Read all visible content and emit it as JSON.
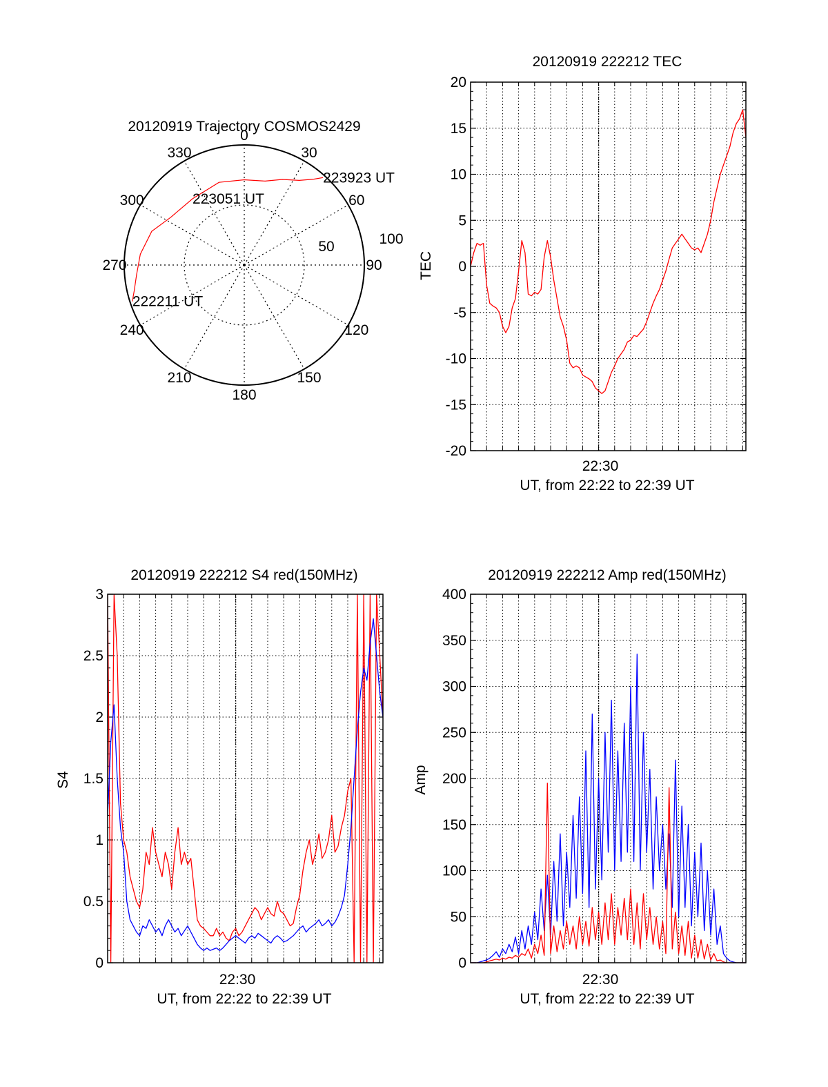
{
  "colors": {
    "red": "#ff0000",
    "blue": "#0000ff",
    "axis": "#000000",
    "grid": "#000000"
  },
  "chart_data": [
    {
      "id": "trajectory",
      "type": "polar",
      "title": "20120919 Trajectory COSMOS2429",
      "azimuth_labels": [
        "0",
        "30",
        "60",
        "90",
        "120",
        "150",
        "180",
        "210",
        "240",
        "270",
        "300",
        "330"
      ],
      "ring_labels": [
        "50",
        "100"
      ],
      "rings": [
        50,
        100
      ],
      "grid": true,
      "series": [
        {
          "color": "#ff0000",
          "points": [
            {
              "az": 252,
              "r": 98
            },
            {
              "az": 257,
              "r": 94
            },
            {
              "az": 265,
              "r": 90
            },
            {
              "az": 276,
              "r": 87
            },
            {
              "az": 290,
              "r": 82
            },
            {
              "az": 303,
              "r": 73
            },
            {
              "az": 322,
              "r": 70
            },
            {
              "az": 343,
              "r": 72
            },
            {
              "az": 0,
              "r": 71
            },
            {
              "az": 14,
              "r": 72
            },
            {
              "az": 24,
              "r": 78
            },
            {
              "az": 33,
              "r": 84
            },
            {
              "az": 39,
              "r": 92
            },
            {
              "az": 42,
              "r": 98
            }
          ]
        }
      ],
      "annotations": [
        {
          "text": "222211 UT",
          "az": 252,
          "r": 98
        },
        {
          "text": "223051 UT",
          "az": 322,
          "r": 70
        },
        {
          "text": "223923 UT",
          "az": 42,
          "r": 98
        }
      ]
    },
    {
      "id": "tec",
      "type": "line",
      "title": "20120919 222212 TEC",
      "ylabel": "TEC",
      "xlabel": "UT, from 22:22 to 22:39 UT",
      "x_tick_label": "22:30",
      "xlim": [
        0,
        17.2
      ],
      "ylim": [
        -20,
        20
      ],
      "yticks": [
        "-20",
        "-15",
        "-10",
        "-5",
        "0",
        "5",
        "10",
        "15",
        "20"
      ],
      "grid": true,
      "series": [
        {
          "color": "#ff0000",
          "x": [
            0.0,
            0.2,
            0.4,
            0.6,
            0.8,
            1.0,
            1.2,
            1.4,
            1.6,
            1.8,
            2.0,
            2.2,
            2.4,
            2.6,
            2.8,
            3.0,
            3.2,
            3.4,
            3.6,
            3.8,
            4.0,
            4.2,
            4.4,
            4.6,
            4.8,
            5.0,
            5.2,
            5.4,
            5.6,
            5.8,
            6.0,
            6.2,
            6.4,
            6.6,
            6.8,
            7.0,
            7.2,
            7.4,
            7.6,
            7.8,
            8.0,
            8.2,
            8.4,
            8.6,
            8.8,
            9.0,
            9.2,
            9.4,
            9.6,
            9.8,
            10.0,
            10.2,
            10.4,
            10.6,
            10.8,
            11.0,
            11.2,
            11.4,
            11.6,
            11.8,
            12.0,
            12.2,
            12.4,
            12.6,
            12.8,
            13.0,
            13.2,
            13.4,
            13.6,
            13.8,
            14.0,
            14.2,
            14.4,
            14.6,
            14.8,
            15.0,
            15.2,
            15.4,
            15.6,
            15.8,
            16.0,
            16.2,
            16.4,
            16.6,
            16.8,
            17.0,
            17.2
          ],
          "y": [
            0.0,
            1.5,
            2.5,
            2.3,
            2.5,
            -2.0,
            -4.0,
            -4.3,
            -4.5,
            -5.0,
            -6.5,
            -7.2,
            -6.5,
            -4.5,
            -3.5,
            -0.5,
            2.8,
            1.5,
            -3.0,
            -3.2,
            -2.8,
            -3.0,
            -2.5,
            1.0,
            2.8,
            1.0,
            -1.5,
            -3.5,
            -5.5,
            -6.5,
            -8.0,
            -10.5,
            -11.0,
            -10.8,
            -11.0,
            -11.8,
            -12.0,
            -12.2,
            -12.5,
            -13.2,
            -13.5,
            -13.8,
            -13.5,
            -12.5,
            -11.5,
            -10.8,
            -10.0,
            -9.5,
            -9.0,
            -8.2,
            -8.0,
            -7.5,
            -7.6,
            -7.2,
            -6.8,
            -6.0,
            -5.0,
            -4.0,
            -3.2,
            -2.5,
            -1.5,
            -0.5,
            0.8,
            2.0,
            2.5,
            3.0,
            3.5,
            3.0,
            2.5,
            2.0,
            1.8,
            2.0,
            1.5,
            2.5,
            3.5,
            5.0,
            7.0,
            8.5,
            10.0,
            11.0,
            12.0,
            13.0,
            14.5,
            15.5,
            16.0,
            17.0,
            14.0
          ]
        }
      ]
    },
    {
      "id": "s4",
      "type": "line",
      "title": "20120919 222212 S4 red(150MHz)",
      "ylabel": "S4",
      "xlabel": "UT, from 22:22 to 22:39 UT",
      "x_tick_label": "22:30",
      "xlim": [
        0,
        17.2
      ],
      "ylim": [
        0,
        3
      ],
      "yticks": [
        "0",
        "0.5",
        "1",
        "1.5",
        "2",
        "2.5",
        "3"
      ],
      "grid": true,
      "series": [
        {
          "color": "#ff0000",
          "x": [
            0.0,
            0.2,
            0.4,
            0.6,
            0.8,
            1.0,
            1.2,
            1.4,
            1.6,
            1.8,
            2.0,
            2.2,
            2.4,
            2.6,
            2.8,
            3.0,
            3.2,
            3.4,
            3.6,
            3.8,
            4.0,
            4.2,
            4.4,
            4.6,
            4.8,
            5.0,
            5.2,
            5.4,
            5.6,
            5.8,
            6.0,
            6.2,
            6.4,
            6.6,
            6.8,
            7.0,
            7.2,
            7.4,
            7.6,
            7.8,
            8.0,
            8.2,
            8.4,
            8.6,
            8.8,
            9.0,
            9.2,
            9.4,
            9.6,
            9.8,
            10.0,
            10.2,
            10.4,
            10.6,
            10.8,
            11.0,
            11.2,
            11.4,
            11.6,
            11.8,
            12.0,
            12.2,
            12.4,
            12.6,
            12.8,
            13.0,
            13.2,
            13.4,
            13.6,
            13.8,
            14.0,
            14.2,
            14.4,
            14.6,
            14.8,
            15.0,
            15.2,
            15.4,
            15.6,
            15.8,
            16.0,
            16.2,
            16.4,
            16.6,
            16.8,
            17.0,
            17.2
          ],
          "y": [
            3.0,
            0.0,
            3.0,
            2.5,
            1.3,
            1.0,
            0.9,
            0.7,
            0.6,
            0.5,
            0.45,
            0.6,
            0.9,
            0.8,
            1.1,
            0.9,
            0.8,
            0.7,
            0.9,
            0.8,
            0.6,
            0.9,
            1.1,
            0.8,
            0.9,
            0.8,
            0.85,
            0.6,
            0.35,
            0.3,
            0.28,
            0.25,
            0.22,
            0.22,
            0.28,
            0.22,
            0.25,
            0.2,
            0.18,
            0.25,
            0.28,
            0.22,
            0.25,
            0.3,
            0.35,
            0.4,
            0.45,
            0.42,
            0.35,
            0.4,
            0.45,
            0.4,
            0.38,
            0.5,
            0.42,
            0.4,
            0.35,
            0.3,
            0.32,
            0.45,
            0.55,
            0.75,
            0.9,
            1.0,
            0.8,
            0.9,
            1.05,
            0.85,
            0.9,
            1.0,
            1.2,
            0.9,
            0.95,
            1.1,
            1.2,
            1.4,
            1.5,
            0.0,
            3.0,
            0.0,
            3.0,
            0.0,
            3.0,
            0.0,
            3.0,
            2.5,
            2.0
          ]
        },
        {
          "color": "#0000ff",
          "x": [
            0.0,
            0.2,
            0.4,
            0.6,
            0.8,
            1.0,
            1.2,
            1.4,
            1.6,
            1.8,
            2.0,
            2.2,
            2.4,
            2.6,
            2.8,
            3.0,
            3.2,
            3.4,
            3.6,
            3.8,
            4.0,
            4.2,
            4.4,
            4.6,
            4.8,
            5.0,
            5.2,
            5.4,
            5.6,
            5.8,
            6.0,
            6.2,
            6.4,
            6.6,
            6.8,
            7.0,
            7.2,
            7.4,
            7.6,
            7.8,
            8.0,
            8.2,
            8.4,
            8.6,
            8.8,
            9.0,
            9.2,
            9.4,
            9.6,
            9.8,
            10.0,
            10.2,
            10.4,
            10.6,
            10.8,
            11.0,
            11.2,
            11.4,
            11.6,
            11.8,
            12.0,
            12.2,
            12.4,
            12.6,
            12.8,
            13.0,
            13.2,
            13.4,
            13.6,
            13.8,
            14.0,
            14.2,
            14.4,
            14.6,
            14.8,
            15.0,
            15.2,
            15.4,
            15.6,
            15.8,
            16.0,
            16.2,
            16.4,
            16.6,
            16.8,
            17.0,
            17.2
          ],
          "y": [
            1.2,
            1.8,
            2.1,
            1.5,
            1.1,
            0.9,
            0.5,
            0.35,
            0.3,
            0.25,
            0.22,
            0.3,
            0.28,
            0.35,
            0.3,
            0.25,
            0.28,
            0.22,
            0.3,
            0.35,
            0.3,
            0.25,
            0.28,
            0.22,
            0.26,
            0.3,
            0.25,
            0.2,
            0.15,
            0.12,
            0.1,
            0.12,
            0.1,
            0.11,
            0.12,
            0.1,
            0.12,
            0.15,
            0.18,
            0.2,
            0.22,
            0.2,
            0.18,
            0.16,
            0.2,
            0.22,
            0.2,
            0.24,
            0.22,
            0.2,
            0.18,
            0.16,
            0.2,
            0.22,
            0.2,
            0.17,
            0.18,
            0.2,
            0.22,
            0.25,
            0.28,
            0.3,
            0.25,
            0.28,
            0.3,
            0.32,
            0.35,
            0.3,
            0.32,
            0.35,
            0.3,
            0.33,
            0.38,
            0.45,
            0.55,
            0.8,
            1.1,
            1.5,
            1.9,
            2.2,
            2.4,
            2.3,
            2.6,
            2.8,
            2.5,
            2.2,
            2.0
          ]
        }
      ]
    },
    {
      "id": "amp",
      "type": "line",
      "title": "20120919 222212 Amp red(150MHz)",
      "ylabel": "Amp",
      "xlabel": "UT, from 22:22 to 22:39 UT",
      "x_tick_label": "22:30",
      "xlim": [
        0,
        17.2
      ],
      "ylim": [
        0,
        400
      ],
      "yticks": [
        "0",
        "50",
        "100",
        "150",
        "200",
        "250",
        "300",
        "350",
        "400"
      ],
      "grid": true,
      "series": [
        {
          "color": "#0000ff",
          "x": [
            0.0,
            0.2,
            0.4,
            0.6,
            0.8,
            1.0,
            1.2,
            1.4,
            1.6,
            1.8,
            2.0,
            2.2,
            2.4,
            2.6,
            2.8,
            3.0,
            3.2,
            3.4,
            3.6,
            3.8,
            4.0,
            4.2,
            4.4,
            4.6,
            4.8,
            5.0,
            5.2,
            5.4,
            5.6,
            5.8,
            6.0,
            6.2,
            6.4,
            6.6,
            6.8,
            7.0,
            7.2,
            7.4,
            7.6,
            7.8,
            8.0,
            8.2,
            8.4,
            8.6,
            8.8,
            9.0,
            9.2,
            9.4,
            9.6,
            9.8,
            10.0,
            10.2,
            10.4,
            10.6,
            10.8,
            11.0,
            11.2,
            11.4,
            11.6,
            11.8,
            12.0,
            12.2,
            12.4,
            12.6,
            12.8,
            13.0,
            13.2,
            13.4,
            13.6,
            13.8,
            14.0,
            14.2,
            14.4,
            14.6,
            14.8,
            15.0,
            15.2,
            15.4,
            15.6,
            15.8,
            16.0,
            16.2,
            16.4,
            16.6,
            16.8,
            17.0,
            17.2
          ],
          "y": [
            0,
            0,
            0,
            1,
            2,
            3,
            5,
            8,
            12,
            6,
            15,
            10,
            20,
            12,
            28,
            10,
            35,
            15,
            40,
            20,
            55,
            25,
            80,
            35,
            95,
            30,
            110,
            45,
            140,
            40,
            120,
            60,
            160,
            70,
            180,
            75,
            230,
            60,
            270,
            80,
            200,
            90,
            250,
            120,
            285,
            100,
            230,
            110,
            260,
            120,
            300,
            110,
            335,
            100,
            250,
            120,
            210,
            80,
            180,
            100,
            150,
            80,
            140,
            60,
            220,
            50,
            170,
            60,
            150,
            40,
            120,
            50,
            130,
            35,
            100,
            30,
            80,
            20,
            40,
            10,
            5,
            2,
            1,
            0,
            0,
            0,
            0
          ]
        },
        {
          "color": "#ff0000",
          "x": [
            0.0,
            0.2,
            0.4,
            0.6,
            0.8,
            1.0,
            1.2,
            1.4,
            1.6,
            1.8,
            2.0,
            2.2,
            2.4,
            2.6,
            2.8,
            3.0,
            3.2,
            3.4,
            3.6,
            3.8,
            4.0,
            4.2,
            4.4,
            4.6,
            4.8,
            5.0,
            5.2,
            5.4,
            5.6,
            5.8,
            6.0,
            6.2,
            6.4,
            6.6,
            6.8,
            7.0,
            7.2,
            7.4,
            7.6,
            7.8,
            8.0,
            8.2,
            8.4,
            8.6,
            8.8,
            9.0,
            9.2,
            9.4,
            9.6,
            9.8,
            10.0,
            10.2,
            10.4,
            10.6,
            10.8,
            11.0,
            11.2,
            11.4,
            11.6,
            11.8,
            12.0,
            12.2,
            12.4,
            12.6,
            12.8,
            13.0,
            13.2,
            13.4,
            13.6,
            13.8,
            14.0,
            14.2,
            14.4,
            14.6,
            14.8,
            15.0,
            15.2,
            15.4,
            15.6,
            15.8,
            16.0,
            16.2,
            16.4,
            16.6,
            16.8,
            17.0,
            17.2
          ],
          "y": [
            0,
            0,
            0,
            0,
            0,
            1,
            2,
            3,
            4,
            3,
            5,
            4,
            6,
            5,
            8,
            6,
            10,
            8,
            15,
            5,
            20,
            10,
            30,
            8,
            195,
            10,
            40,
            12,
            35,
            15,
            45,
            20,
            40,
            15,
            50,
            20,
            45,
            18,
            60,
            25,
            55,
            20,
            65,
            25,
            75,
            20,
            60,
            30,
            70,
            25,
            80,
            20,
            65,
            15,
            75,
            25,
            60,
            20,
            50,
            15,
            45,
            10,
            190,
            15,
            55,
            10,
            40,
            8,
            45,
            5,
            30,
            5,
            25,
            4,
            20,
            3,
            10,
            2,
            3,
            1,
            0,
            0,
            0,
            0,
            0,
            0,
            0
          ]
        }
      ]
    }
  ]
}
